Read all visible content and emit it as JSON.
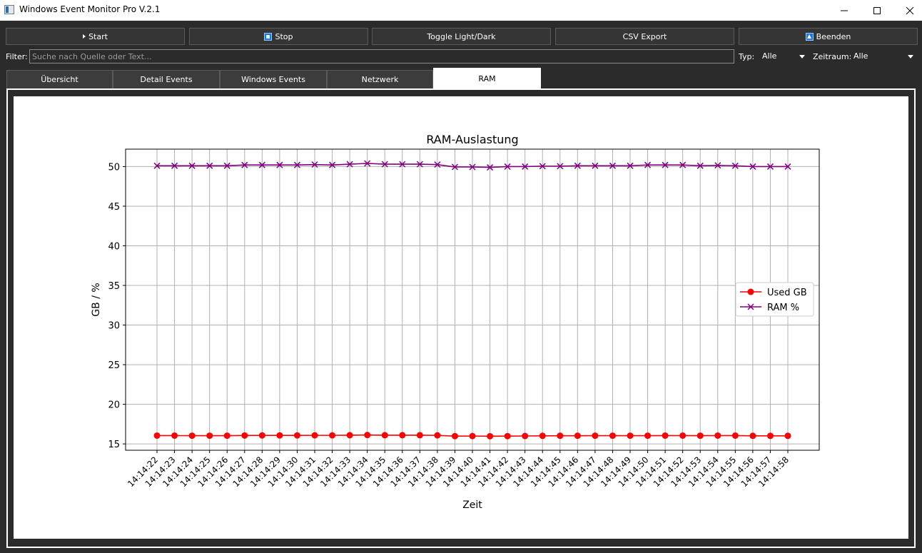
{
  "window": {
    "title": "Windows Event Monitor Pro V.2.1"
  },
  "toolbar": {
    "start_label": "Start",
    "stop_label": "Stop",
    "toggle_label": "Toggle Light/Dark",
    "export_label": "CSV Export",
    "quit_label": "Beenden"
  },
  "filter": {
    "label": "Filter:",
    "placeholder": "Suche nach Quelle oder Text...",
    "type_label": "Typ:",
    "type_value": "Alle",
    "timeframe_label": "Zeitraum:",
    "timeframe_value": "Alle"
  },
  "tabs": [
    {
      "label": "Übersicht",
      "active": false
    },
    {
      "label": "Detail Events",
      "active": false
    },
    {
      "label": "Windows Events",
      "active": false
    },
    {
      "label": "Netzwerk",
      "active": false
    },
    {
      "label": "RAM",
      "active": true
    }
  ],
  "colors": {
    "used_gb": "#ff0000",
    "ram_percent": "#800080",
    "background": "#2b2b2b"
  },
  "chart_data": {
    "type": "line",
    "title": "RAM-Auslastung",
    "xlabel": "Zeit",
    "ylabel": "GB / %",
    "ylim": [
      14.2,
      52.2
    ],
    "yticks": [
      15,
      20,
      25,
      30,
      35,
      40,
      45,
      50
    ],
    "grid": true,
    "legend_position": "center-right",
    "x": [
      "14:14:22",
      "14:14:23",
      "14:14:24",
      "14:14:25",
      "14:14:26",
      "14:14:27",
      "14:14:28",
      "14:14:29",
      "14:14:30",
      "14:14:31",
      "14:14:32",
      "14:14:33",
      "14:14:34",
      "14:14:35",
      "14:14:36",
      "14:14:37",
      "14:14:38",
      "14:14:39",
      "14:14:40",
      "14:14:41",
      "14:14:42",
      "14:14:43",
      "14:14:44",
      "14:14:45",
      "14:14:46",
      "14:14:47",
      "14:14:48",
      "14:14:49",
      "14:14:50",
      "14:14:51",
      "14:14:52",
      "14:14:53",
      "14:14:54",
      "14:14:55",
      "14:14:56",
      "14:14:57",
      "14:14:58"
    ],
    "series": [
      {
        "name": "Used GB",
        "marker": "circle",
        "values": [
          16.05,
          16.05,
          16.04,
          16.04,
          16.04,
          16.06,
          16.07,
          16.07,
          16.07,
          16.08,
          16.08,
          16.1,
          16.12,
          16.1,
          16.1,
          16.1,
          16.08,
          15.98,
          15.99,
          15.97,
          15.98,
          16.0,
          16.02,
          16.03,
          16.03,
          16.04,
          16.04,
          16.04,
          16.04,
          16.05,
          16.05,
          16.04,
          16.05,
          16.05,
          16.02,
          16.02,
          16.02
        ]
      },
      {
        "name": "RAM %",
        "marker": "x",
        "values": [
          50.1,
          50.1,
          50.1,
          50.1,
          50.1,
          50.2,
          50.2,
          50.2,
          50.2,
          50.25,
          50.2,
          50.3,
          50.4,
          50.3,
          50.3,
          50.3,
          50.25,
          49.95,
          49.95,
          49.9,
          50.0,
          50.0,
          50.05,
          50.05,
          50.1,
          50.1,
          50.1,
          50.1,
          50.2,
          50.2,
          50.2,
          50.1,
          50.15,
          50.1,
          50.0,
          50.0,
          50.0
        ]
      }
    ]
  }
}
